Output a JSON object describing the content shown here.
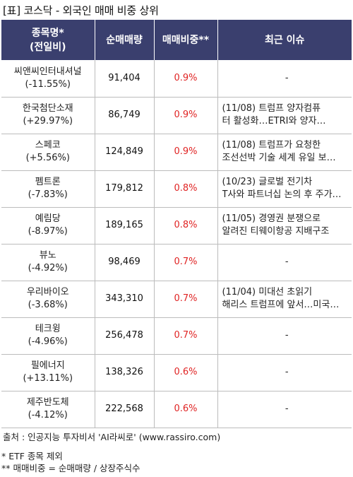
{
  "title": "[표] 코스닥 - 외국인 매매 비중 상위",
  "header": {
    "col1_line1": "종목명*",
    "col1_line2": "(전일비)",
    "col2": "순매매량",
    "col3": "매매비중**",
    "col4": "최근 이슈"
  },
  "rows": [
    {
      "name": "씨앤씨인터내셔널",
      "change": "(-11.55%)",
      "qty": "91,404",
      "ratio": "0.9%",
      "issue1": "-",
      "issue2": ""
    },
    {
      "name": "한국첨단소재",
      "change": "(+29.97%)",
      "qty": "86,749",
      "ratio": "0.9%",
      "issue1": "(11/08) 트럼프 양자컴퓨",
      "issue2": "터 활성화…ETRI와 양자…"
    },
    {
      "name": "스페코",
      "change": "(+5.56%)",
      "qty": "124,849",
      "ratio": "0.9%",
      "issue1": "(11/08) 트럼프가 요청한",
      "issue2": "조선선박 기술 세계 유일 보…"
    },
    {
      "name": "펨트론",
      "change": "(-7.83%)",
      "qty": "179,812",
      "ratio": "0.8%",
      "issue1": "(10/23) 글로벌 전기차",
      "issue2": "T사와 파트너십 논의 후 주가…"
    },
    {
      "name": "예림당",
      "change": "(-8.97%)",
      "qty": "189,165",
      "ratio": "0.8%",
      "issue1": "(11/05) 경영권 분쟁으로",
      "issue2": "알려진 티웨이항공 지배구조"
    },
    {
      "name": "뷰노",
      "change": "(-4.92%)",
      "qty": "98,469",
      "ratio": "0.7%",
      "issue1": "-",
      "issue2": ""
    },
    {
      "name": "우리바이오",
      "change": "(-3.68%)",
      "qty": "343,310",
      "ratio": "0.7%",
      "issue1": "(11/04) 미대선 초읽기",
      "issue2": "해리스 트럼프에 앞서…미국…"
    },
    {
      "name": "테크윙",
      "change": "(-4.96%)",
      "qty": "256,478",
      "ratio": "0.7%",
      "issue1": "-",
      "issue2": ""
    },
    {
      "name": "필에너지",
      "change": "(+13.11%)",
      "qty": "138,326",
      "ratio": "0.6%",
      "issue1": "-",
      "issue2": ""
    },
    {
      "name": "제주반도체",
      "change": "(-4.12%)",
      "qty": "222,568",
      "ratio": "0.6%",
      "issue1": "-",
      "issue2": ""
    }
  ],
  "source": "출처 : 인공지능 투자비서 'AI라씨로' (www.rassiro.com)",
  "note1": "* ETF 종목 제외",
  "note2": "** 매매비중 = 순매매량 / 상장주식수",
  "colors": {
    "header_bg": "#3a3f6e",
    "ratio": "#e02424",
    "rule": "#bcbcbc"
  }
}
